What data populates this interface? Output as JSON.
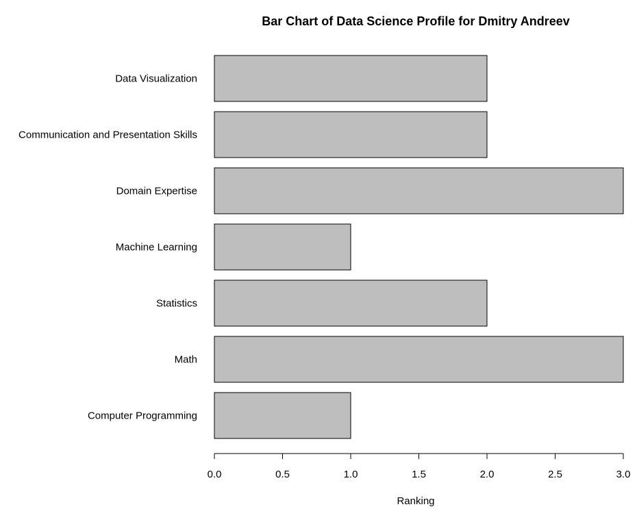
{
  "chart_data": {
    "type": "bar",
    "orientation": "horizontal",
    "title": "Bar Chart of Data Science Profile for Dmitry Andreev",
    "xlabel": "Ranking",
    "ylabel": "",
    "categories": [
      "Computer Programming",
      "Math",
      "Statistics",
      "Machine Learning",
      "Domain Expertise",
      "Communication and Presentation Skills",
      "Data Visualization"
    ],
    "values": [
      1,
      3,
      2,
      1,
      3,
      2,
      2
    ],
    "xlim": [
      0,
      3
    ],
    "xticks": [
      "0.0",
      "0.5",
      "1.0",
      "1.5",
      "2.0",
      "2.5",
      "3.0"
    ],
    "grid": false,
    "bar_fill": "#bebebe",
    "bar_stroke": "#000000"
  }
}
